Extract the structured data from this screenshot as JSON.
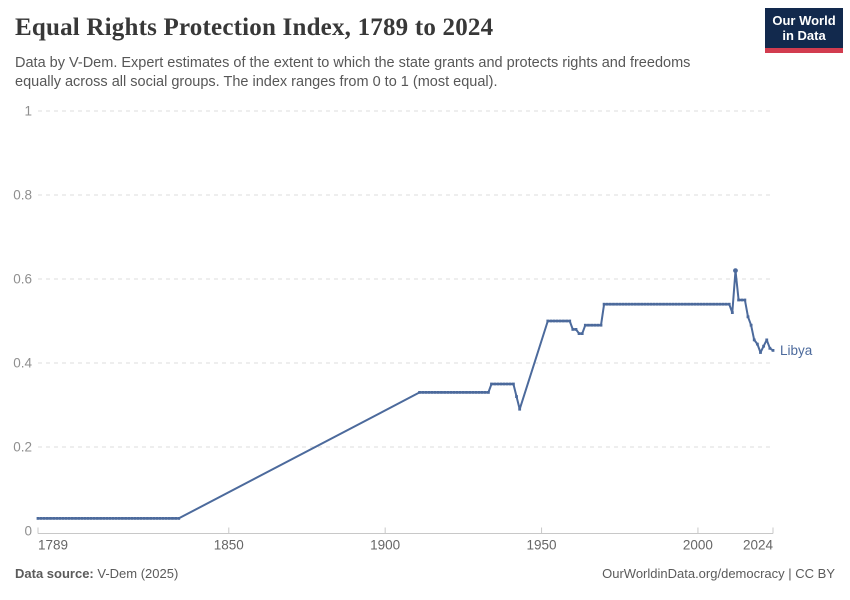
{
  "header": {
    "title": "Equal Rights Protection Index, 1789 to 2024",
    "subtitle_line1": "Data by V-Dem. Expert estimates of the extent to which the state grants and protects rights and freedoms",
    "subtitle_line2": "equally across all social groups. The index ranges from 0 to 1 (most equal).",
    "logo": {
      "line1": "Our World",
      "line2": "in Data",
      "bg_color": "#12294d",
      "accent_color": "#d23c4f"
    }
  },
  "chart_data": {
    "type": "line",
    "title": "Equal Rights Protection Index, 1789 to 2024",
    "xlabel": "",
    "ylabel": "",
    "xlim": [
      1789,
      2024
    ],
    "ylim": [
      0,
      1
    ],
    "x_ticks": [
      1789,
      1850,
      1900,
      1950,
      2000,
      2024
    ],
    "y_ticks": [
      0,
      0.2,
      0.4,
      0.6,
      0.8,
      1
    ],
    "grid": "horizontal-dashed",
    "legend_position": "end-of-line-label",
    "series": [
      {
        "name": "Libya",
        "color": "#4c6a9c",
        "points": [
          [
            1789,
            0.03
          ],
          [
            1834,
            0.03
          ],
          [
            1911,
            0.33
          ],
          [
            1933,
            0.33
          ],
          [
            1934,
            0.35
          ],
          [
            1941,
            0.35
          ],
          [
            1943,
            0.29
          ],
          [
            1952,
            0.5
          ],
          [
            1959,
            0.5
          ],
          [
            1960,
            0.48
          ],
          [
            1961,
            0.48
          ],
          [
            1962,
            0.47
          ],
          [
            1963,
            0.47
          ],
          [
            1964,
            0.49
          ],
          [
            1969,
            0.49
          ],
          [
            1970,
            0.54
          ],
          [
            2010,
            0.54
          ],
          [
            2011,
            0.52
          ],
          [
            2012,
            0.62
          ],
          [
            2013,
            0.55
          ],
          [
            2014,
            0.55
          ],
          [
            2015,
            0.55
          ],
          [
            2016,
            0.51
          ],
          [
            2017,
            0.49
          ],
          [
            2018,
            0.455
          ],
          [
            2019,
            0.445
          ],
          [
            2020,
            0.425
          ],
          [
            2021,
            0.44
          ],
          [
            2022,
            0.455
          ],
          [
            2023,
            0.435
          ],
          [
            2024,
            0.43
          ]
        ],
        "smooth_segments": [
          [
            1834,
            1911
          ],
          [
            1943,
            1952
          ]
        ]
      }
    ],
    "colors": {
      "gridline": "#dedede",
      "axis": "#c8c8c8",
      "y_tick_label": "#8f8f8f",
      "x_tick_label": "#666666"
    }
  },
  "footer": {
    "source_label": "Data source:",
    "source_value": " V-Dem (2025)",
    "right_text": "OurWorldinData.org/democracy | CC BY"
  }
}
